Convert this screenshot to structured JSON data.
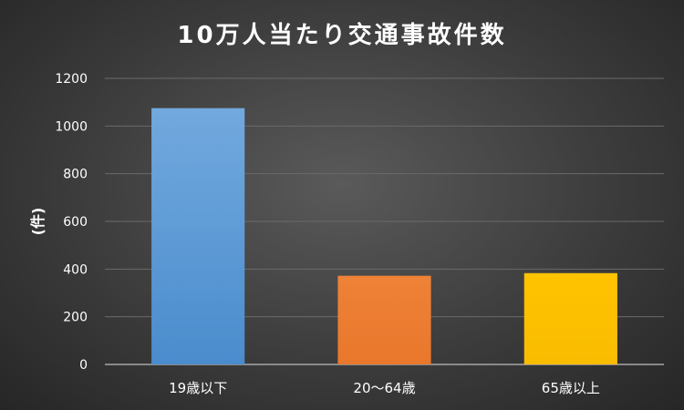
{
  "chart_data": {
    "type": "bar",
    "title": "10万人当たり交通事故件数",
    "ylabel": "(件)",
    "xlabel": "",
    "categories": [
      "19歳以下",
      "20～64歳",
      "65歳以上"
    ],
    "values": [
      1075,
      372,
      383
    ],
    "ylim": [
      0,
      1200
    ],
    "yticks": [
      0,
      200,
      400,
      600,
      800,
      1000,
      1200
    ],
    "grid": true,
    "legend": "none",
    "colors": [
      "#5B9BD5",
      "#ED7D31",
      "#FFC000"
    ]
  }
}
